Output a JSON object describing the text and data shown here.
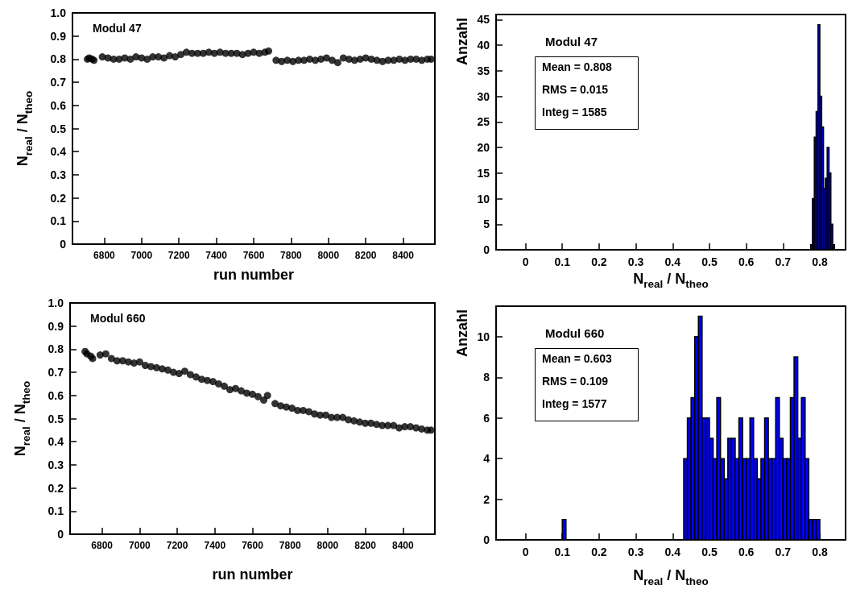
{
  "chart_data": [
    {
      "type": "scatter",
      "xlabel": "run number",
      "ylabel": "N$_{real}$ / N$_{theo}$",
      "annotations": [
        "Modul 47"
      ],
      "marker": "circle",
      "xlim": [
        6630,
        8570
      ],
      "xticks": [
        6800,
        7000,
        7200,
        7400,
        7600,
        7800,
        8000,
        8200,
        8400
      ],
      "ylim": [
        0,
        1
      ],
      "yticks": [
        0,
        0.1,
        0.2,
        0.3,
        0.4,
        0.5,
        0.6,
        0.7,
        0.8,
        0.9,
        {
          "value": 1,
          "label": "1.0"
        }
      ],
      "series": [
        {
          "color": "#000000",
          "x": [
            6710,
            6720,
            6735,
            6745,
            6790,
            6820,
            6850,
            6880,
            6910,
            6940,
            6970,
            7000,
            7030,
            7060,
            7090,
            7120,
            7150,
            7180,
            7210,
            7240,
            7270,
            7300,
            7330,
            7360,
            7390,
            7420,
            7450,
            7480,
            7510,
            7540,
            7570,
            7600,
            7630,
            7660,
            7680,
            7720,
            7750,
            7780,
            7810,
            7840,
            7870,
            7900,
            7930,
            7960,
            7990,
            8020,
            8050,
            8080,
            8110,
            8140,
            8170,
            8200,
            8230,
            8260,
            8290,
            8320,
            8350,
            8380,
            8410,
            8440,
            8470,
            8500,
            8530,
            8550
          ],
          "values": [
            0.8,
            0.805,
            0.8,
            0.795,
            0.81,
            0.805,
            0.8,
            0.8,
            0.805,
            0.8,
            0.81,
            0.805,
            0.8,
            0.81,
            0.81,
            0.805,
            0.815,
            0.81,
            0.82,
            0.83,
            0.825,
            0.825,
            0.825,
            0.83,
            0.825,
            0.83,
            0.825,
            0.825,
            0.825,
            0.82,
            0.825,
            0.83,
            0.825,
            0.83,
            0.835,
            0.795,
            0.79,
            0.795,
            0.79,
            0.795,
            0.795,
            0.8,
            0.795,
            0.8,
            0.805,
            0.795,
            0.785,
            0.805,
            0.8,
            0.795,
            0.8,
            0.805,
            0.8,
            0.795,
            0.79,
            0.795,
            0.795,
            0.8,
            0.795,
            0.8,
            0.8,
            0.795,
            0.8,
            0.8
          ]
        }
      ]
    },
    {
      "type": "histogram",
      "xlabel": "N$_{real}$ / N$_{theo}$",
      "ylabel": "Anzahl",
      "annotations": [
        "Modul 47",
        "Mean = 0.808",
        "RMS = 0.015",
        "Integ = 1585"
      ],
      "xlim": [
        -0.08,
        0.87
      ],
      "xticks": [
        0,
        0.1,
        0.2,
        0.3,
        0.4,
        0.5,
        0.6,
        0.7,
        0.8
      ],
      "ylim": [
        0,
        46
      ],
      "yticks": [
        0,
        5,
        10,
        15,
        20,
        25,
        30,
        35,
        40,
        45
      ],
      "color": "#0000ff",
      "bins": [
        0.775,
        0.78,
        0.785,
        0.79,
        0.795,
        0.8,
        0.805,
        0.81,
        0.815,
        0.82,
        0.825,
        0.83,
        0.835,
        0.84
      ],
      "values": [
        1,
        10,
        22,
        27,
        44,
        30,
        24,
        12,
        14,
        20,
        15,
        5,
        1
      ]
    },
    {
      "type": "scatter",
      "xlabel": "run number",
      "ylabel": "N$_{real}$ / N$_{theo}$",
      "annotations": [
        "Modul 660"
      ],
      "marker": "circle",
      "xlim": [
        6630,
        8570
      ],
      "xticks": [
        6800,
        7000,
        7200,
        7400,
        7600,
        7800,
        8000,
        8200,
        8400
      ],
      "ylim": [
        0,
        1
      ],
      "yticks": [
        0,
        0.1,
        0.2,
        0.3,
        0.4,
        0.5,
        0.6,
        0.7,
        0.8,
        0.9,
        {
          "value": 1,
          "label": "1.0"
        }
      ],
      "series": [
        {
          "color": "#000000",
          "x": [
            6710,
            6720,
            6740,
            6750,
            6790,
            6820,
            6850,
            6880,
            6910,
            6940,
            6970,
            7000,
            7030,
            7060,
            7090,
            7120,
            7150,
            7180,
            7210,
            7240,
            7270,
            7300,
            7330,
            7360,
            7390,
            7420,
            7450,
            7480,
            7510,
            7540,
            7570,
            7600,
            7630,
            7660,
            7680,
            7720,
            7750,
            7780,
            7810,
            7840,
            7870,
            7900,
            7930,
            7960,
            7990,
            8020,
            8050,
            8080,
            8110,
            8140,
            8170,
            8200,
            8230,
            8260,
            8290,
            8320,
            8350,
            8380,
            8410,
            8440,
            8470,
            8500,
            8530,
            8550
          ],
          "values": [
            0.79,
            0.78,
            0.77,
            0.76,
            0.775,
            0.78,
            0.76,
            0.75,
            0.75,
            0.745,
            0.74,
            0.745,
            0.73,
            0.725,
            0.72,
            0.715,
            0.71,
            0.7,
            0.695,
            0.705,
            0.69,
            0.68,
            0.67,
            0.665,
            0.66,
            0.65,
            0.64,
            0.625,
            0.63,
            0.62,
            0.61,
            0.605,
            0.595,
            0.58,
            0.6,
            0.565,
            0.555,
            0.55,
            0.545,
            0.535,
            0.535,
            0.53,
            0.52,
            0.515,
            0.515,
            0.505,
            0.505,
            0.505,
            0.495,
            0.49,
            0.485,
            0.48,
            0.48,
            0.475,
            0.47,
            0.47,
            0.47,
            0.46,
            0.465,
            0.465,
            0.46,
            0.455,
            0.45,
            0.45
          ]
        }
      ]
    },
    {
      "type": "histogram",
      "xlabel": "N$_{real}$ / N$_{theo}$",
      "ylabel": "Anzahl",
      "annotations": [
        "Modul 660",
        "Mean = 0.603",
        "RMS = 0.109",
        "Integ = 1577"
      ],
      "xlim": [
        -0.08,
        0.87
      ],
      "xticks": [
        0,
        0.1,
        0.2,
        0.3,
        0.4,
        0.5,
        0.6,
        0.7,
        0.8
      ],
      "ylim": [
        0,
        11.5
      ],
      "yticks": [
        0,
        2,
        4,
        6,
        8,
        10
      ],
      "color": "#0000ff",
      "bins": [
        0.1,
        0.11,
        0.12,
        0.13,
        0.14,
        0.15,
        0.16,
        0.17,
        0.18,
        0.19,
        0.2,
        0.21,
        0.22,
        0.23,
        0.24,
        0.25,
        0.26,
        0.27,
        0.28,
        0.29,
        0.3,
        0.31,
        0.32,
        0.33,
        0.34,
        0.35,
        0.36,
        0.37,
        0.38,
        0.39,
        0.4,
        0.41,
        0.42,
        0.43,
        0.44,
        0.45,
        0.46,
        0.47,
        0.48,
        0.49,
        0.5,
        0.51,
        0.52,
        0.53,
        0.54,
        0.55,
        0.56,
        0.57,
        0.58,
        0.59,
        0.6,
        0.61,
        0.62,
        0.63,
        0.64,
        0.65,
        0.66,
        0.67,
        0.68,
        0.69,
        0.7,
        0.71,
        0.72,
        0.73,
        0.74,
        0.75,
        0.76,
        0.77,
        0.78,
        0.79,
        0.8
      ],
      "values": [
        1,
        0,
        0,
        0,
        0,
        0,
        0,
        0,
        0,
        0,
        0,
        0,
        0,
        0,
        0,
        0,
        0,
        0,
        0,
        0,
        0,
        0,
        0,
        0,
        0,
        0,
        0,
        0,
        0,
        0,
        0,
        0,
        0,
        4,
        6,
        7,
        10,
        11,
        6,
        6,
        5,
        4,
        7,
        4,
        3,
        5,
        5,
        4,
        6,
        4,
        4,
        6,
        4,
        3,
        4,
        6,
        4,
        4,
        7,
        5,
        4,
        4,
        7,
        9,
        5,
        7,
        4,
        1,
        1,
        1
      ]
    }
  ]
}
